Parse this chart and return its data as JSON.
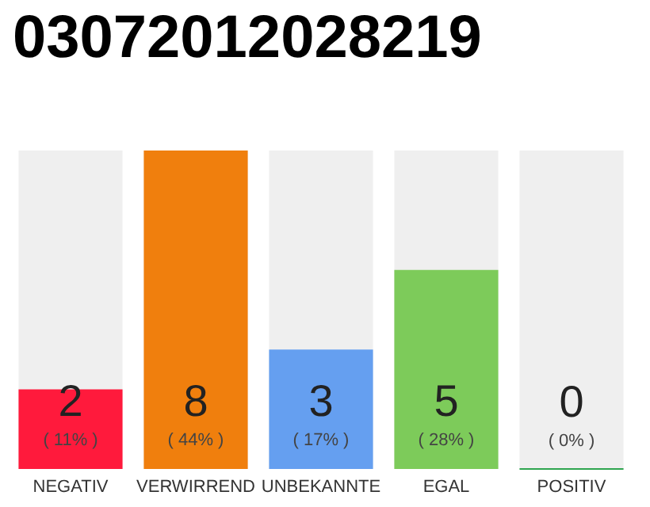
{
  "chart_data": {
    "type": "bar",
    "title": "03072012028219",
    "categories": [
      "NEGATIV",
      "VERWIRREND",
      "UNBEKANNTE",
      "EGAL",
      "POSITIV"
    ],
    "values": [
      2,
      8,
      3,
      5,
      0
    ],
    "value_labels": [
      "2\n( 11% )",
      "8\n( 44% )",
      "3\n( 17% )",
      "5\n( 28% )",
      "0\n( 0% )"
    ],
    "colors": [
      "#ff1a3c",
      "#f07f0d",
      "#659ff0",
      "#7dcb5a",
      "#2ea44f"
    ]
  }
}
